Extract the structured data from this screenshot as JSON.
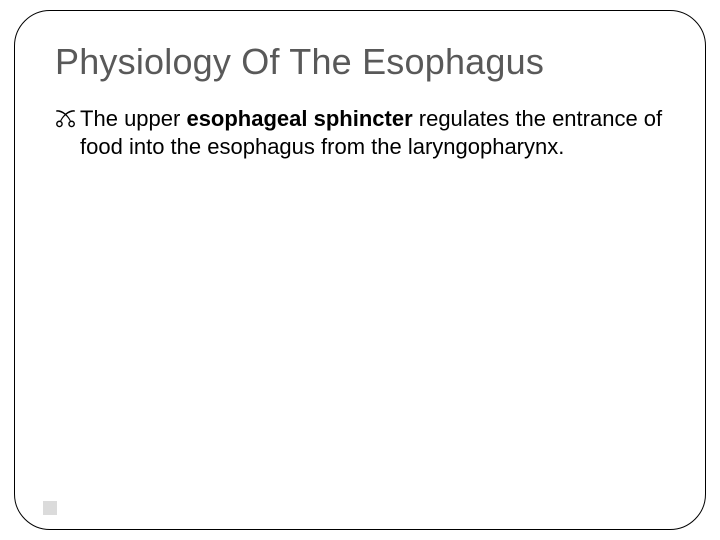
{
  "slide": {
    "title": "Physiology Of The Esophagus",
    "bullet": {
      "pre": "The upper ",
      "bold": "esophageal sphincter",
      "post": " regulates the entrance of food into the esophagus from the laryngopharynx."
    }
  },
  "style": {
    "title_color": "#595959",
    "title_fontsize": 36,
    "body_fontsize": 22,
    "body_color": "#000000",
    "frame_border_color": "#000000",
    "frame_border_radius": 36,
    "background": "#ffffff",
    "footer_square_color": "#b0b0b0"
  }
}
